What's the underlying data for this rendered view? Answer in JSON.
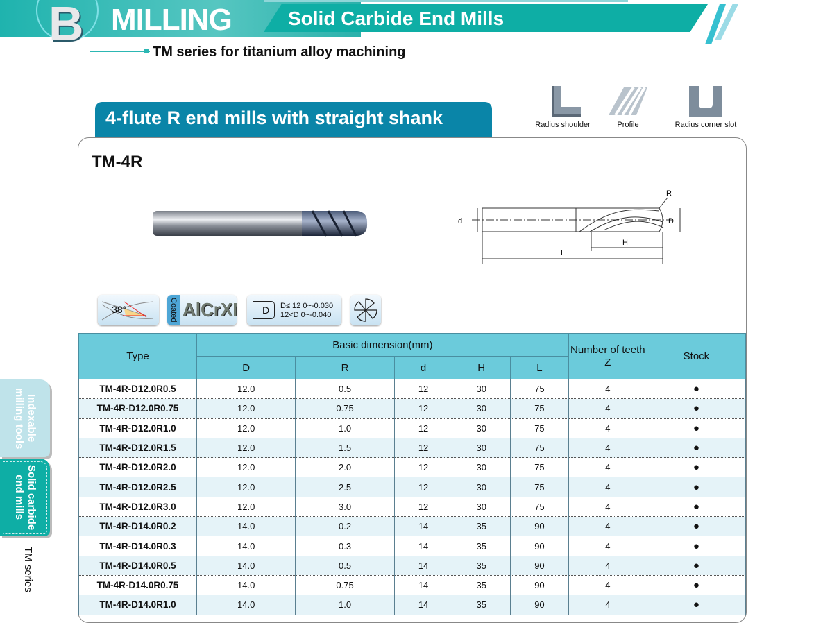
{
  "header": {
    "letter": "B",
    "section": "MILLING",
    "subtitle": "Solid Carbide End Mills",
    "series": "TM series for titanium alloy machining"
  },
  "section_title": "4-flute R end mills with straight shank",
  "applications": [
    {
      "label": "Radius shoulder",
      "icon": "radius-shoulder-icon"
    },
    {
      "label": "Profile",
      "icon": "profile-icon"
    },
    {
      "label": "Radius corner slot",
      "icon": "radius-corner-slot-icon"
    }
  ],
  "model": "TM-4R",
  "drawing_labels": {
    "R": "R",
    "D": "D",
    "d": "d",
    "H": "H",
    "L": "L"
  },
  "badges": {
    "helix": "38°",
    "coated": "Coated",
    "coating": "AlCrXN",
    "tol_symbol": "D",
    "tol_line1": "D≤ 12  0~-0.030",
    "tol_line2": "12<D  0~-0.040"
  },
  "side_tabs": [
    {
      "label": "Indexable milling tools",
      "active": false
    },
    {
      "label": "Solid carbide end mills",
      "active": true
    }
  ],
  "side_series": "TM series",
  "table": {
    "headers": {
      "type": "Type",
      "basic": "Basic dimension(mm)",
      "teeth": "Number of teeth",
      "teeth_sym": "Z",
      "stock": "Stock",
      "dims": [
        "D",
        "R",
        "d",
        "H",
        "L"
      ]
    },
    "stock_symbol": "●",
    "rows": [
      [
        "TM-4R-D12.0R0.5",
        "12.0",
        "0.5",
        "12",
        "30",
        "75",
        "4"
      ],
      [
        "TM-4R-D12.0R0.75",
        "12.0",
        "0.75",
        "12",
        "30",
        "75",
        "4"
      ],
      [
        "TM-4R-D12.0R1.0",
        "12.0",
        "1.0",
        "12",
        "30",
        "75",
        "4"
      ],
      [
        "TM-4R-D12.0R1.5",
        "12.0",
        "1.5",
        "12",
        "30",
        "75",
        "4"
      ],
      [
        "TM-4R-D12.0R2.0",
        "12.0",
        "2.0",
        "12",
        "30",
        "75",
        "4"
      ],
      [
        "TM-4R-D12.0R2.5",
        "12.0",
        "2.5",
        "12",
        "30",
        "75",
        "4"
      ],
      [
        "TM-4R-D12.0R3.0",
        "12.0",
        "3.0",
        "12",
        "30",
        "75",
        "4"
      ],
      [
        "TM-4R-D14.0R0.2",
        "14.0",
        "0.2",
        "14",
        "35",
        "90",
        "4"
      ],
      [
        "TM-4R-D14.0R0.3",
        "14.0",
        "0.3",
        "14",
        "35",
        "90",
        "4"
      ],
      [
        "TM-4R-D14.0R0.5",
        "14.0",
        "0.5",
        "14",
        "35",
        "90",
        "4"
      ],
      [
        "TM-4R-D14.0R0.75",
        "14.0",
        "0.75",
        "14",
        "35",
        "90",
        "4"
      ],
      [
        "TM-4R-D14.0R1.0",
        "14.0",
        "1.0",
        "14",
        "35",
        "90",
        "4"
      ]
    ]
  },
  "colors": {
    "teal": "#0eaea5",
    "section_blue": "#0a85a8",
    "table_header": "#6bcbdb",
    "row_alt": "#e5f3f8"
  }
}
